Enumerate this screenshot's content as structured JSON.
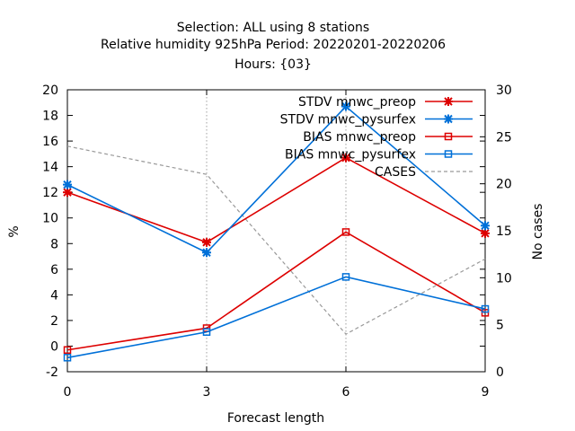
{
  "title_lines": [
    "Selection: ALL using     8 stations",
    "Relative humidity 925hPa   Period: 20220201-20220206",
    "Hours: {03}"
  ],
  "chart_data": {
    "type": "line",
    "xlabel": "Forecast length",
    "ylabel": "%",
    "y2label": "No cases",
    "xlim": [
      0,
      9
    ],
    "ylim": [
      -2,
      20
    ],
    "y2lim": [
      0,
      30
    ],
    "x_ticks": [
      "0",
      "3",
      "6",
      "9"
    ],
    "y_ticks": [
      "-2",
      "0",
      "2",
      "4",
      "6",
      "8",
      "10",
      "12",
      "14",
      "16",
      "18",
      "20"
    ],
    "y2_ticks": [
      "0",
      "5",
      "10",
      "15",
      "20",
      "25",
      "30"
    ],
    "grid": true,
    "legend_position": "top-right",
    "x": [
      0,
      3,
      6,
      9
    ],
    "series": [
      {
        "name": "STDV mnwc_preop",
        "axis": "y",
        "color": "#dd0000",
        "marker": "x",
        "dash": "solid",
        "values": [
          12.0,
          8.1,
          14.7,
          8.8
        ]
      },
      {
        "name": "STDV mnwc_pysurfex",
        "axis": "y",
        "color": "#0070d8",
        "marker": "x",
        "dash": "solid",
        "values": [
          12.6,
          7.3,
          18.7,
          9.4
        ]
      },
      {
        "name": "BIAS mnwc_preop",
        "axis": "y",
        "color": "#dd0000",
        "marker": "square",
        "dash": "solid",
        "values": [
          -0.3,
          1.4,
          8.9,
          2.6
        ]
      },
      {
        "name": "BIAS mnwc_pysurfex",
        "axis": "y",
        "color": "#0070d8",
        "marker": "square",
        "dash": "solid",
        "values": [
          -0.9,
          1.1,
          5.4,
          2.9
        ]
      },
      {
        "name": "CASES",
        "axis": "y2",
        "color": "#999999",
        "marker": "none",
        "dash": "dashed",
        "values": [
          24,
          21,
          4,
          12
        ]
      }
    ]
  }
}
